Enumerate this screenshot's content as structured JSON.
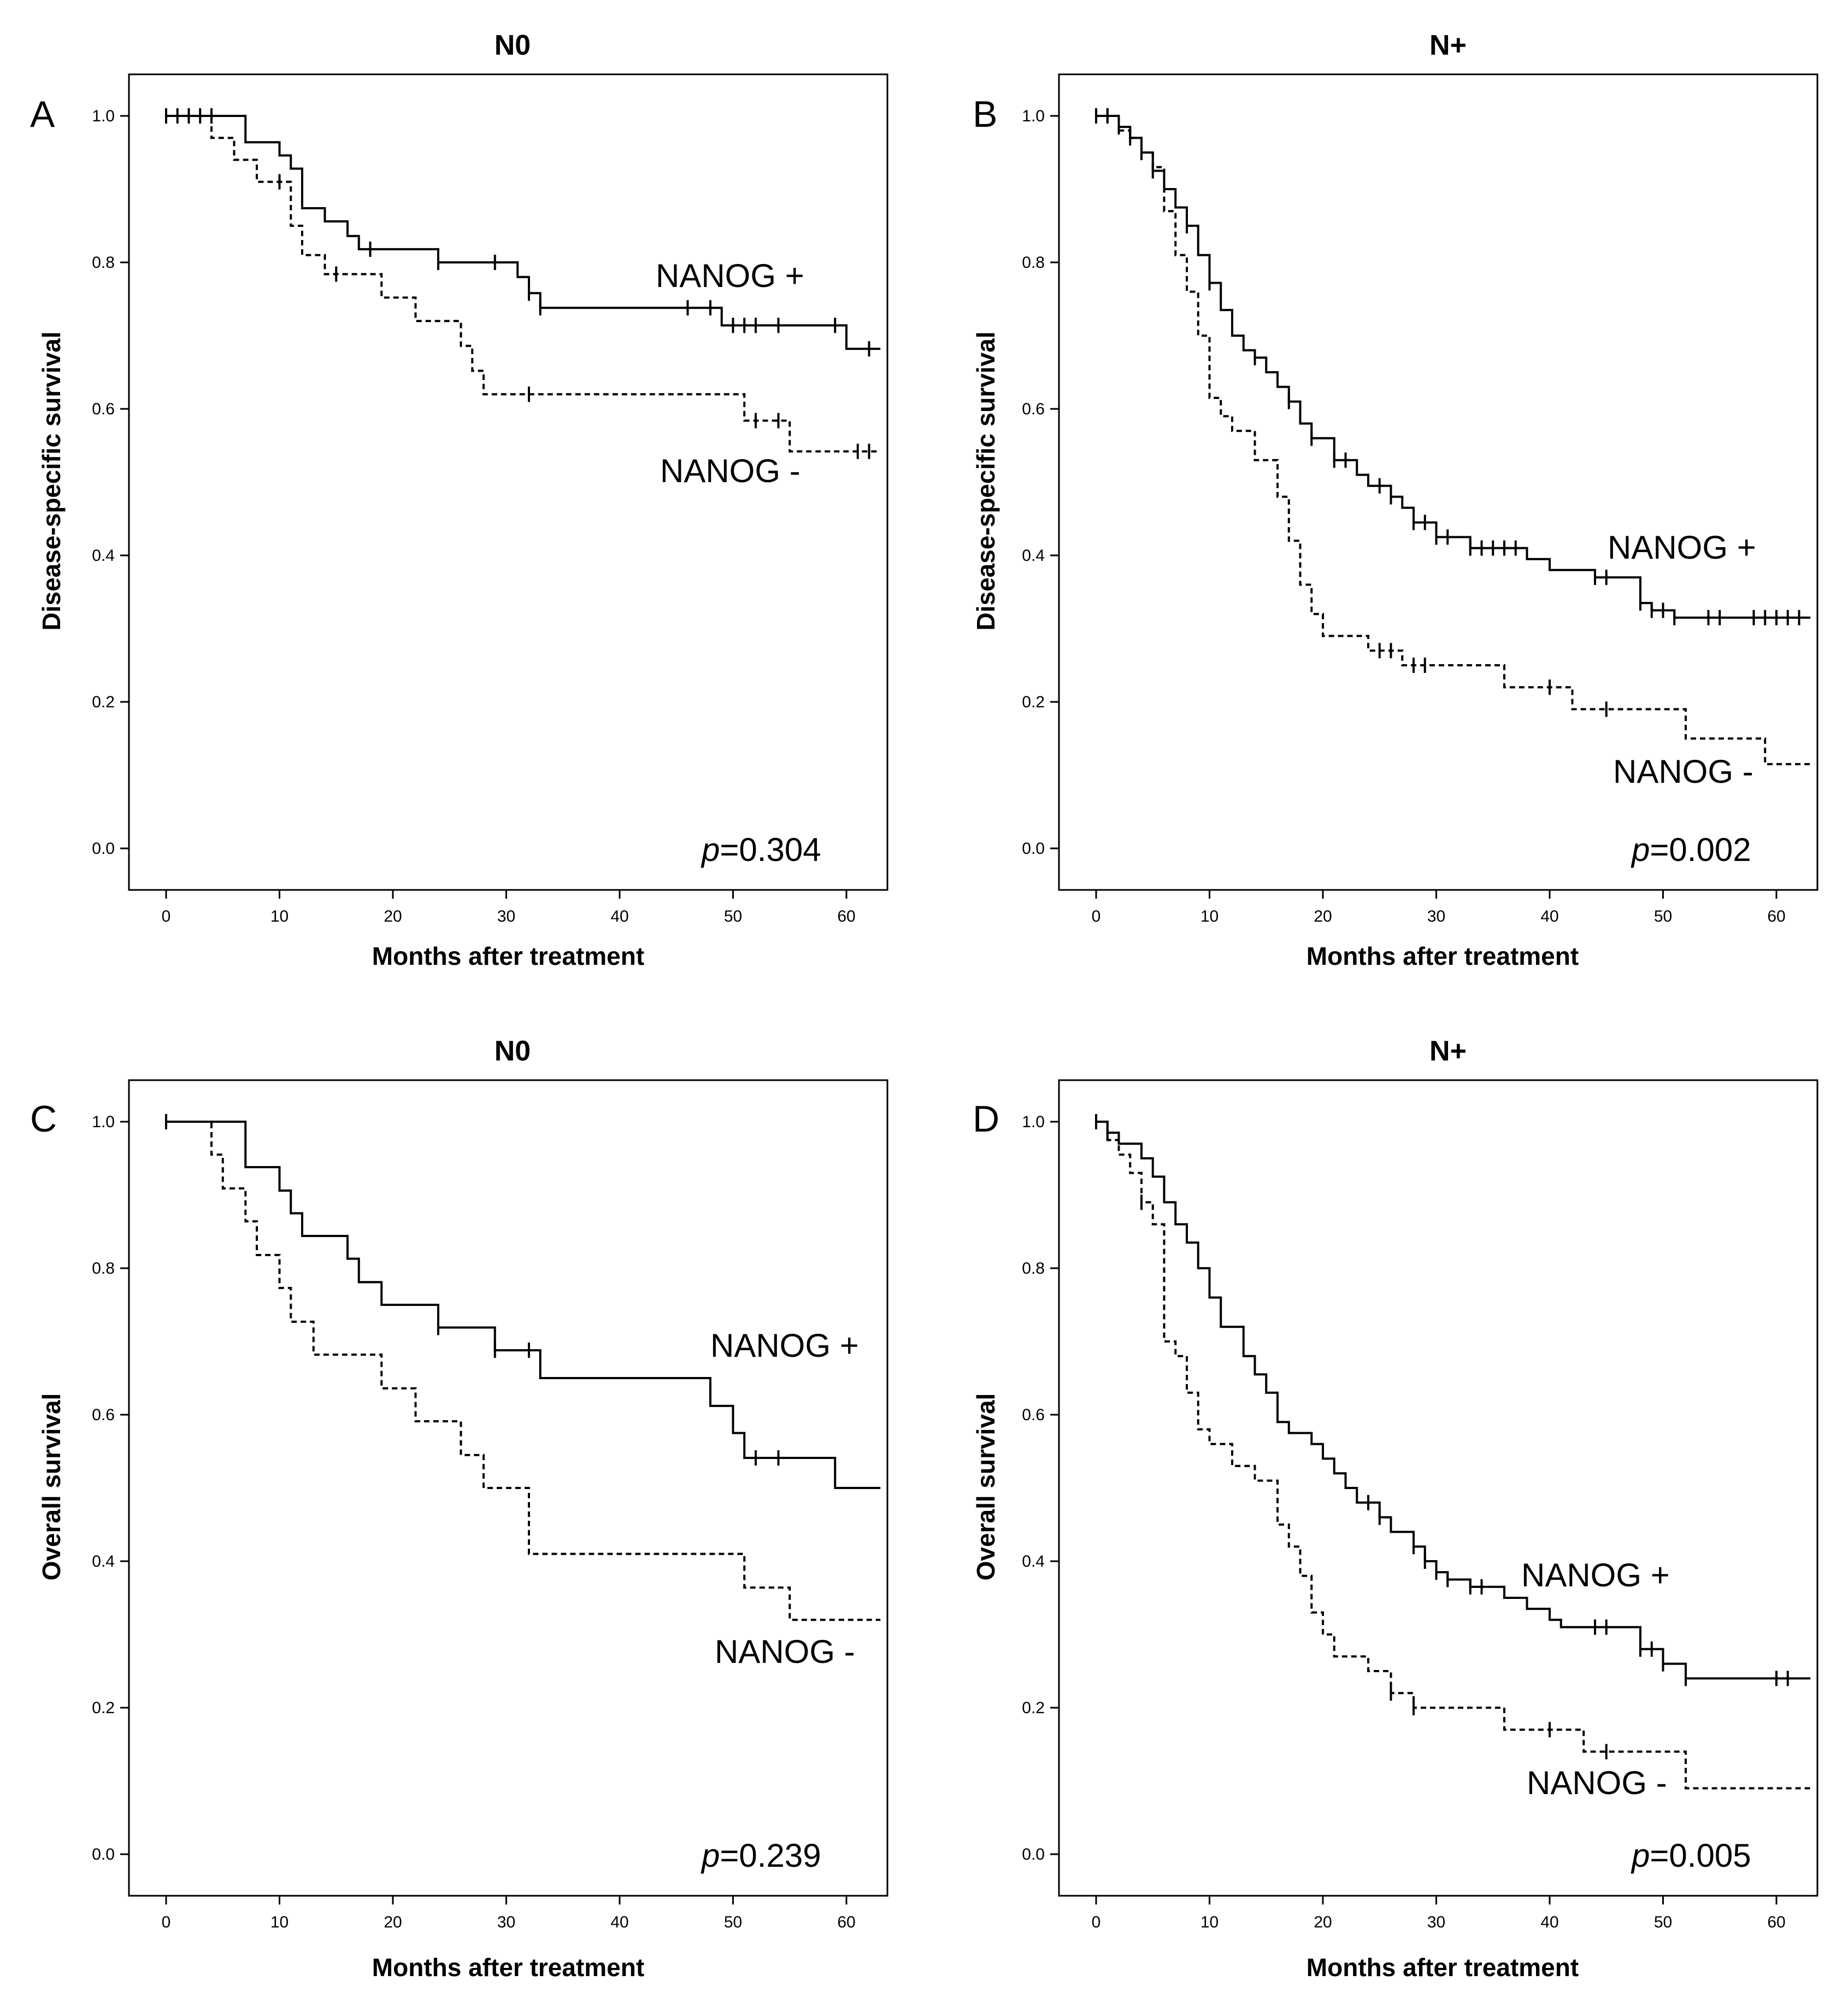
{
  "chart_data": [
    {
      "type": "line",
      "subtype": "kaplan-meier",
      "panel": "A",
      "title": "N0",
      "xlabel": "Months after treatment",
      "ylabel": "Disease-specific survival",
      "xlim": [
        0,
        63
      ],
      "ylim": [
        0,
        1.0
      ],
      "x_ticks": [
        0,
        10,
        20,
        30,
        40,
        50,
        60
      ],
      "y_ticks": [
        "0.0",
        "0.2",
        "0.4",
        "0.6",
        "0.8",
        "1.0"
      ],
      "p_value": "=0.304",
      "series": [
        {
          "name": "NANOG +",
          "style": "solid",
          "steps": [
            [
              0,
              1.0
            ],
            [
              7,
              0.964
            ],
            [
              10,
              0.946
            ],
            [
              11,
              0.928
            ],
            [
              12,
              0.874
            ],
            [
              14,
              0.856
            ],
            [
              16,
              0.836
            ],
            [
              17,
              0.818
            ],
            [
              24,
              0.8
            ],
            [
              31,
              0.78
            ],
            [
              32,
              0.758
            ],
            [
              33,
              0.738
            ],
            [
              49,
              0.714
            ],
            [
              60,
              0.682
            ],
            [
              63,
              0.682
            ]
          ],
          "censor_x": [
            0,
            1,
            2,
            3,
            4,
            18,
            24,
            29,
            32,
            33,
            46,
            48,
            50,
            51,
            52,
            54,
            59,
            62
          ]
        },
        {
          "name": "NANOG -",
          "style": "dashed",
          "steps": [
            [
              0,
              1.0
            ],
            [
              4,
              0.97
            ],
            [
              6,
              0.94
            ],
            [
              8,
              0.91
            ],
            [
              11,
              0.85
            ],
            [
              12,
              0.81
            ],
            [
              14,
              0.784
            ],
            [
              19,
              0.752
            ],
            [
              22,
              0.72
            ],
            [
              26,
              0.686
            ],
            [
              27,
              0.652
            ],
            [
              28,
              0.62
            ],
            [
              51,
              0.584
            ],
            [
              55,
              0.542
            ],
            [
              63,
              0.542
            ]
          ],
          "censor_x": [
            10,
            15,
            32,
            52,
            54,
            61,
            62
          ]
        }
      ]
    },
    {
      "type": "line",
      "subtype": "kaplan-meier",
      "panel": "B",
      "title": "N+",
      "xlabel": "Months after treatment",
      "ylabel": "Disease-specific survival",
      "xlim": [
        0,
        63
      ],
      "ylim": [
        0,
        1.0
      ],
      "x_ticks": [
        0,
        10,
        20,
        30,
        40,
        50,
        60
      ],
      "y_ticks": [
        "0.0",
        "0.2",
        "0.4",
        "0.6",
        "0.8",
        "1.0"
      ],
      "p_value": "=0.002",
      "series": [
        {
          "name": "NANOG +",
          "style": "solid",
          "steps": [
            [
              0,
              1.0
            ],
            [
              2,
              0.985
            ],
            [
              3,
              0.97
            ],
            [
              4,
              0.95
            ],
            [
              5,
              0.925
            ],
            [
              6,
              0.9
            ],
            [
              7,
              0.875
            ],
            [
              8,
              0.85
            ],
            [
              9,
              0.81
            ],
            [
              10,
              0.772
            ],
            [
              11,
              0.735
            ],
            [
              12,
              0.7
            ],
            [
              13,
              0.68
            ],
            [
              14,
              0.67
            ],
            [
              15,
              0.65
            ],
            [
              16,
              0.63
            ],
            [
              17,
              0.61
            ],
            [
              18,
              0.58
            ],
            [
              19,
              0.56
            ],
            [
              21,
              0.53
            ],
            [
              23,
              0.51
            ],
            [
              24,
              0.495
            ],
            [
              26,
              0.48
            ],
            [
              27,
              0.465
            ],
            [
              28,
              0.445
            ],
            [
              30,
              0.425
            ],
            [
              33,
              0.41
            ],
            [
              38,
              0.395
            ],
            [
              40,
              0.38
            ],
            [
              44,
              0.37
            ],
            [
              48,
              0.335
            ],
            [
              49,
              0.325
            ],
            [
              51,
              0.315
            ],
            [
              63,
              0.315
            ]
          ],
          "censor_x": [
            0,
            1,
            2,
            4,
            5,
            8,
            10,
            14,
            17,
            19,
            21,
            22,
            25,
            26,
            28,
            29,
            30,
            31,
            33,
            34,
            35,
            36,
            37,
            44,
            45,
            48,
            49,
            50,
            51,
            54,
            55,
            58,
            59,
            60,
            61,
            62
          ]
        },
        {
          "name": "NANOG -",
          "style": "dashed",
          "steps": [
            [
              0,
              1.0
            ],
            [
              2,
              0.98
            ],
            [
              3,
              0.97
            ],
            [
              4,
              0.95
            ],
            [
              5,
              0.93
            ],
            [
              6,
              0.87
            ],
            [
              7,
              0.81
            ],
            [
              8,
              0.76
            ],
            [
              9,
              0.7
            ],
            [
              10,
              0.615
            ],
            [
              11,
              0.59
            ],
            [
              12,
              0.57
            ],
            [
              14,
              0.53
            ],
            [
              16,
              0.48
            ],
            [
              17,
              0.42
            ],
            [
              18,
              0.36
            ],
            [
              19,
              0.32
            ],
            [
              20,
              0.29
            ],
            [
              24,
              0.27
            ],
            [
              27,
              0.25
            ],
            [
              36,
              0.22
            ],
            [
              42,
              0.19
            ],
            [
              52,
              0.15
            ],
            [
              59,
              0.115
            ],
            [
              63,
              0.115
            ]
          ],
          "censor_x": [
            1,
            3,
            25,
            26,
            28,
            29,
            40,
            45
          ]
        }
      ]
    },
    {
      "type": "line",
      "subtype": "kaplan-meier",
      "panel": "C",
      "title": "N0",
      "xlabel": "Months after treatment",
      "ylabel": "Overall survival",
      "xlim": [
        0,
        63
      ],
      "ylim": [
        0,
        1.0
      ],
      "x_ticks": [
        0,
        10,
        20,
        30,
        40,
        50,
        60
      ],
      "y_ticks": [
        "0.0",
        "0.2",
        "0.4",
        "0.6",
        "0.8",
        "1.0"
      ],
      "p_value": "=0.239",
      "series": [
        {
          "name": "NANOG +",
          "style": "solid",
          "steps": [
            [
              0,
              1.0
            ],
            [
              7,
              0.938
            ],
            [
              10,
              0.906
            ],
            [
              11,
              0.875
            ],
            [
              12,
              0.844
            ],
            [
              16,
              0.813
            ],
            [
              17,
              0.781
            ],
            [
              19,
              0.75
            ],
            [
              24,
              0.719
            ],
            [
              29,
              0.688
            ],
            [
              33,
              0.65
            ],
            [
              48,
              0.612
            ],
            [
              50,
              0.575
            ],
            [
              51,
              0.541
            ],
            [
              59,
              0.5
            ],
            [
              63,
              0.5
            ]
          ],
          "censor_x": [
            0,
            24,
            29,
            32,
            52,
            54
          ]
        },
        {
          "name": "NANOG -",
          "style": "dashed",
          "steps": [
            [
              0,
              1.0
            ],
            [
              4,
              0.955
            ],
            [
              5,
              0.909
            ],
            [
              7,
              0.864
            ],
            [
              8,
              0.818
            ],
            [
              10,
              0.773
            ],
            [
              11,
              0.727
            ],
            [
              13,
              0.682
            ],
            [
              19,
              0.636
            ],
            [
              22,
              0.591
            ],
            [
              26,
              0.545
            ],
            [
              28,
              0.5
            ],
            [
              32,
              0.41
            ],
            [
              51,
              0.364
            ],
            [
              55,
              0.32
            ],
            [
              63,
              0.32
            ]
          ],
          "censor_x": []
        }
      ]
    },
    {
      "type": "line",
      "subtype": "kaplan-meier",
      "panel": "D",
      "title": "N+",
      "xlabel": "Months after treatment",
      "ylabel": "Overall survival",
      "xlim": [
        0,
        63
      ],
      "ylim": [
        0,
        1.0
      ],
      "x_ticks": [
        0,
        10,
        20,
        30,
        40,
        50,
        60
      ],
      "y_ticks": [
        "0.0",
        "0.2",
        "0.4",
        "0.6",
        "0.8",
        "1.0"
      ],
      "p_value": "=0.005",
      "series": [
        {
          "name": "NANOG +",
          "style": "solid",
          "steps": [
            [
              0,
              1.0
            ],
            [
              1,
              0.985
            ],
            [
              2,
              0.97
            ],
            [
              4,
              0.95
            ],
            [
              5,
              0.925
            ],
            [
              6,
              0.89
            ],
            [
              7,
              0.86
            ],
            [
              8,
              0.835
            ],
            [
              9,
              0.8
            ],
            [
              10,
              0.76
            ],
            [
              11,
              0.72
            ],
            [
              13,
              0.68
            ],
            [
              14,
              0.655
            ],
            [
              15,
              0.63
            ],
            [
              16,
              0.59
            ],
            [
              17,
              0.575
            ],
            [
              19,
              0.56
            ],
            [
              20,
              0.54
            ],
            [
              21,
              0.52
            ],
            [
              22,
              0.5
            ],
            [
              23,
              0.48
            ],
            [
              25,
              0.46
            ],
            [
              26,
              0.44
            ],
            [
              28,
              0.42
            ],
            [
              29,
              0.4
            ],
            [
              30,
              0.385
            ],
            [
              31,
              0.375
            ],
            [
              33,
              0.365
            ],
            [
              36,
              0.35
            ],
            [
              38,
              0.335
            ],
            [
              40,
              0.32
            ],
            [
              41,
              0.31
            ],
            [
              48,
              0.28
            ],
            [
              50,
              0.26
            ],
            [
              52,
              0.24
            ],
            [
              63,
              0.24
            ]
          ],
          "censor_x": [
            0,
            1,
            24,
            25,
            28,
            29,
            30,
            31,
            33,
            34,
            44,
            45,
            48,
            49,
            50,
            52,
            60,
            61
          ]
        },
        {
          "name": "NANOG -",
          "style": "dashed",
          "steps": [
            [
              0,
              1.0
            ],
            [
              1,
              0.975
            ],
            [
              2,
              0.955
            ],
            [
              3,
              0.93
            ],
            [
              4,
              0.89
            ],
            [
              5,
              0.86
            ],
            [
              6,
              0.7
            ],
            [
              7,
              0.68
            ],
            [
              8,
              0.63
            ],
            [
              9,
              0.58
            ],
            [
              10,
              0.56
            ],
            [
              12,
              0.53
            ],
            [
              14,
              0.51
            ],
            [
              16,
              0.45
            ],
            [
              17,
              0.42
            ],
            [
              18,
              0.38
            ],
            [
              19,
              0.33
            ],
            [
              20,
              0.3
            ],
            [
              21,
              0.27
            ],
            [
              24,
              0.25
            ],
            [
              26,
              0.22
            ],
            [
              28,
              0.2
            ],
            [
              36,
              0.17
            ],
            [
              43,
              0.14
            ],
            [
              52,
              0.09
            ],
            [
              63,
              0.09
            ]
          ],
          "censor_x": [
            4,
            26,
            28,
            40,
            45
          ]
        }
      ]
    }
  ],
  "series_labels": [
    {
      "plus": "NANOG +",
      "minus": "NANOG -"
    },
    {
      "plus": "NANOG +",
      "minus": "NANOG -"
    },
    {
      "plus": "NANOG +",
      "minus": "NANOG -"
    },
    {
      "plus": "NANOG +",
      "minus": "NANOG -"
    }
  ],
  "p_symbol": "p"
}
